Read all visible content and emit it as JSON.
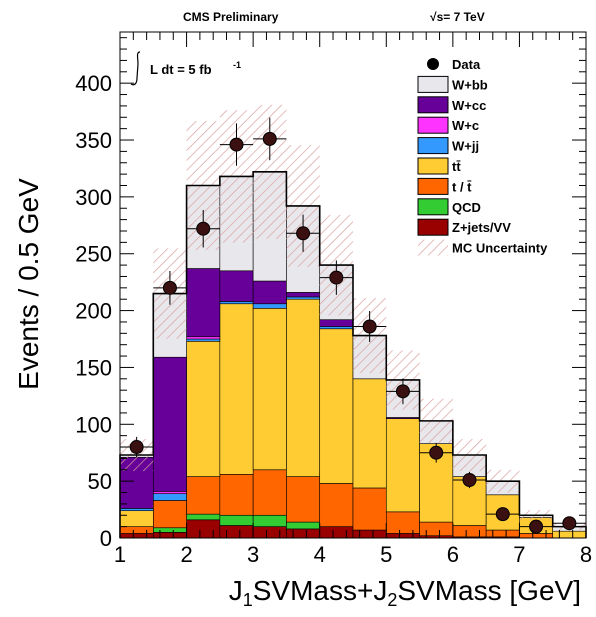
{
  "header": {
    "left": "CMS Preliminary",
    "right_prefix": "√s",
    "right_rest": "= 7 TeV"
  },
  "lumi": {
    "text": "L dt = 5 fb",
    "superscript": "-1"
  },
  "chart_data": {
    "type": "bar",
    "stacked": true,
    "xlabel": "J1SVMass+J2SVMass [GeV]",
    "ylabel": "Events / 0.5 GeV",
    "xlim": [
      1,
      8
    ],
    "ylim": [
      0,
      445
    ],
    "xticks": [
      1,
      2,
      3,
      4,
      5,
      6,
      7,
      8
    ],
    "yticks": [
      0,
      50,
      100,
      150,
      200,
      250,
      300,
      350,
      400
    ],
    "bin_edges": [
      1,
      1.5,
      2,
      2.5,
      3,
      3.5,
      4,
      4.5,
      5,
      5.5,
      6,
      6.5,
      7,
      7.5,
      8
    ],
    "series": [
      {
        "name": "Z+jets/VV",
        "color": "#990000",
        "values": [
          4,
          5,
          16,
          11,
          10,
          8,
          10,
          7,
          4,
          2,
          1,
          1,
          0,
          0
        ]
      },
      {
        "name": "QCD",
        "color": "#33cc33",
        "values": [
          0,
          4,
          5,
          9,
          10,
          6,
          0,
          0,
          0,
          0,
          0,
          0,
          0,
          0
        ]
      },
      {
        "name": "t / t̄",
        "color": "#ff6600",
        "values": [
          6,
          24,
          33,
          36,
          40,
          40,
          38,
          37,
          19,
          12,
          10,
          6,
          4,
          0
        ]
      },
      {
        "name": "tt̄",
        "color": "#ffcc33",
        "values": [
          14,
          0,
          119,
          150,
          142,
          156,
          136,
          96,
          82,
          69,
          43,
          31,
          14,
          6
        ]
      },
      {
        "name": "W+jj",
        "color": "#3399ff",
        "values": [
          2,
          6,
          2,
          2,
          4,
          2,
          2,
          0,
          0,
          0,
          0,
          0,
          0,
          0
        ]
      },
      {
        "name": "W+c",
        "color": "#ff33ff",
        "values": [
          0,
          2,
          2,
          0,
          0,
          0,
          0,
          0,
          0,
          0,
          0,
          0,
          0,
          0
        ]
      },
      {
        "name": "W+cc",
        "color": "#660099",
        "values": [
          45,
          118,
          60,
          27,
          20,
          4,
          6,
          0,
          1,
          0,
          0,
          0,
          0,
          0
        ]
      },
      {
        "name": "W+bb",
        "color": "#e8e8ec",
        "values": [
          2,
          56,
          73,
          83,
          96,
          76,
          48,
          38,
          33,
          20,
          19,
          12,
          2,
          4
        ]
      }
    ],
    "data": {
      "name": "Data",
      "x": [
        1.25,
        1.75,
        2.25,
        2.75,
        3.25,
        3.75,
        4.25,
        4.75,
        5.25,
        5.75,
        6.25,
        6.75,
        7.25,
        7.75
      ],
      "y": [
        80,
        220,
        272,
        346,
        351,
        268,
        229,
        186,
        129,
        75,
        51,
        21,
        10,
        13
      ]
    },
    "uncertainty_name": "MC Uncertainty",
    "legend_order": [
      "Data",
      "W+bb",
      "W+cc",
      "W+c",
      "W+jj",
      "tt̄",
      "t / t̄",
      "QCD",
      "Z+jets/VV",
      "MC Uncertainty"
    ],
    "legend_position": "top-right",
    "grid": false
  }
}
